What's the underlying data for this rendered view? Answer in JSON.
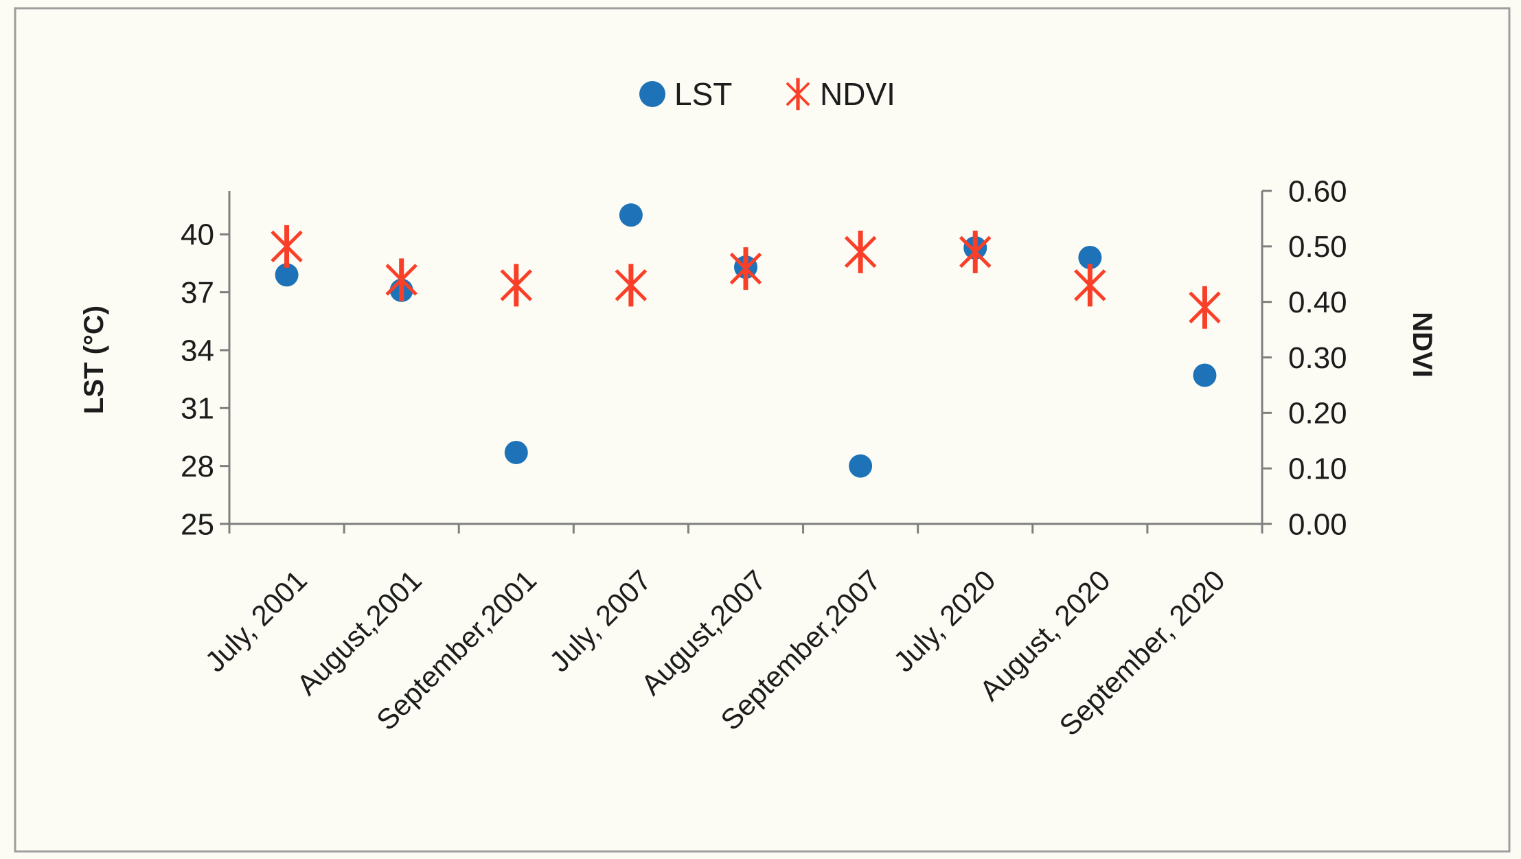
{
  "page": {
    "background": "#fcfcf5",
    "frame_border_color": "#9e9e9e"
  },
  "chart_data": {
    "type": "scatter",
    "title": "",
    "categories": [
      "July, 2001",
      "August,2001",
      "September,2001",
      "July, 2007",
      "August,2007",
      "September,2007",
      "July, 2020",
      "August, 2020",
      "September, 2020"
    ],
    "series": [
      {
        "name": "LST",
        "marker": "circle",
        "color": "#1e73b8",
        "axis": "left",
        "values": [
          37.9,
          37.1,
          28.7,
          41.0,
          38.3,
          28.0,
          39.3,
          38.8,
          32.7
        ]
      },
      {
        "name": "NDVI",
        "marker": "asterisk",
        "color": "#fa3f28",
        "axis": "right",
        "values": [
          0.5,
          0.44,
          0.43,
          0.43,
          0.46,
          0.49,
          0.49,
          0.43,
          0.39
        ]
      }
    ],
    "left_axis": {
      "title": "LST (°C)",
      "tick_labels": [
        "25",
        "28",
        "31",
        "34",
        "37",
        "40"
      ],
      "tick_values": [
        25,
        28,
        31,
        34,
        37,
        40
      ],
      "min": 25,
      "max": 42.25
    },
    "right_axis": {
      "title": "NDVI",
      "tick_labels": [
        "0.00",
        "0.10",
        "0.20",
        "0.30",
        "0.40",
        "0.50",
        "0.60"
      ],
      "tick_values": [
        0.0,
        0.1,
        0.2,
        0.3,
        0.4,
        0.5,
        0.6
      ],
      "min": 0.0,
      "max": 0.6
    },
    "legend": {
      "position": "top",
      "entries": [
        {
          "label": "LST",
          "marker": "circle",
          "color": "#1e73b8"
        },
        {
          "label": "NDVI",
          "marker": "asterisk",
          "color": "#fa3f28"
        }
      ]
    },
    "grid": false,
    "axis_color": "#7f7f7f",
    "text_color": "#1c1c1c"
  }
}
